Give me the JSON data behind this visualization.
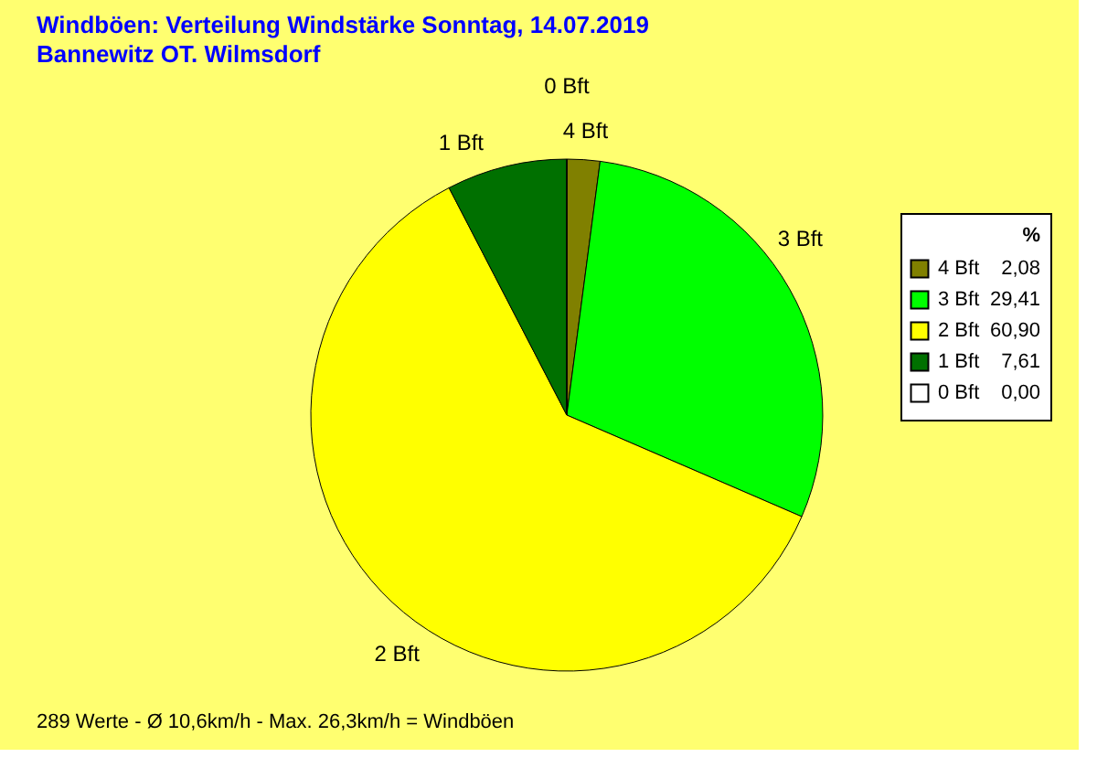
{
  "chart_data": {
    "type": "pie",
    "title": "Windböen: Verteilung Windstärke  Sonntag, 14.07.2019",
    "subtitle": "Bannewitz OT. Wilmsdorf",
    "categories": [
      "4 Bft",
      "3 Bft",
      "2 Bft",
      "1 Bft",
      "0 Bft"
    ],
    "values": [
      2.08,
      29.41,
      60.9,
      7.61,
      0.0
    ],
    "value_labels": [
      "2,08",
      "29,41",
      "60,90",
      "7,61",
      "0,00"
    ],
    "colors": [
      "#808000",
      "#00ff00",
      "#ffff00",
      "#007000",
      "#ffffff"
    ],
    "legend_title": "%",
    "legend": "top right",
    "annotations": [
      "289 Werte  -  Ø 10,6km/h  -  Max. 26,3km/h = Windböen"
    ]
  }
}
